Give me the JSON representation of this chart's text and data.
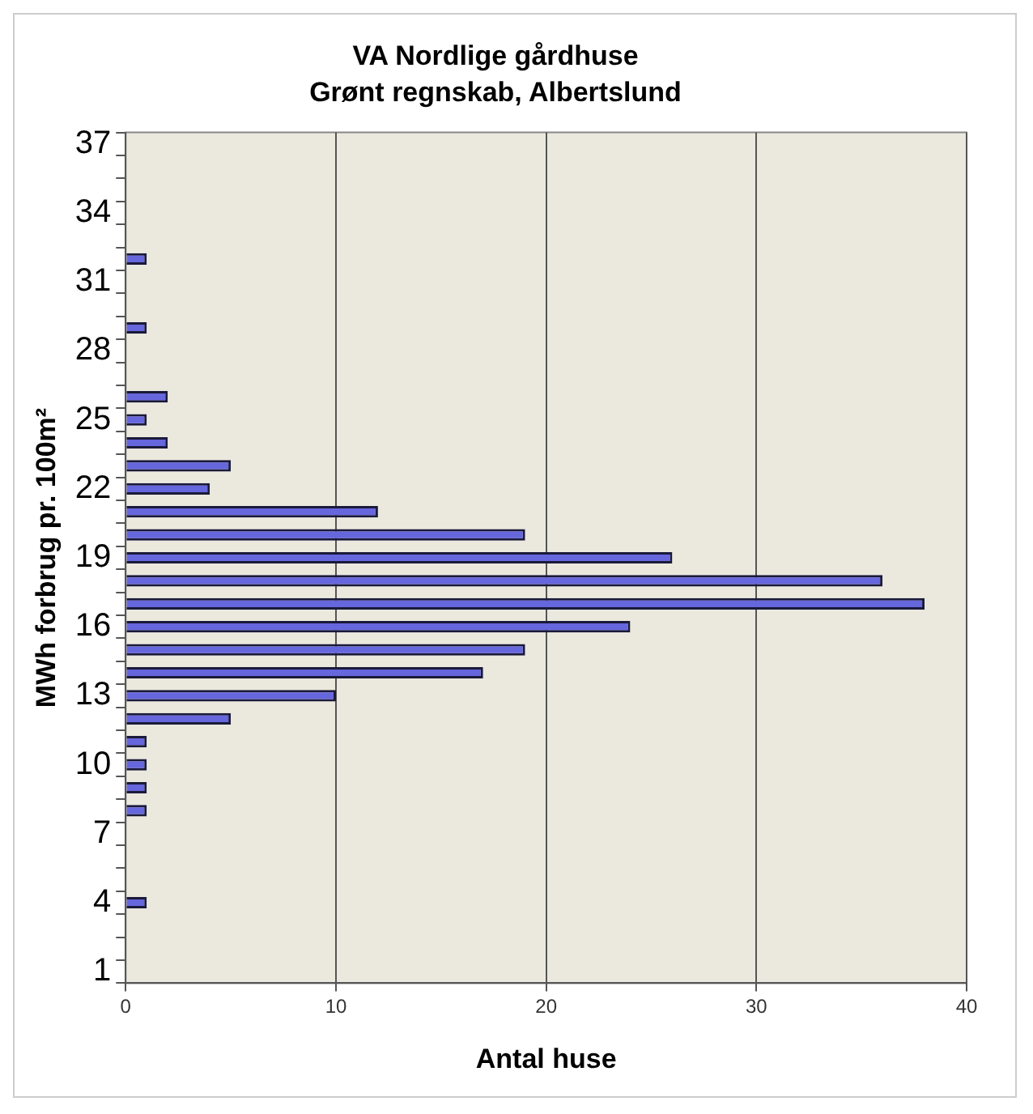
{
  "chart_data": {
    "type": "bar",
    "orientation": "horizontal",
    "title": "VA Nordlige gårdhuse",
    "subtitle": "Grønt regnskab, Albertslund",
    "xlabel": "Antal huse",
    "ylabel": "MWh forbrug pr. 100m²",
    "categories": [
      "37",
      null,
      null,
      "34",
      null,
      null,
      "31",
      null,
      null,
      "28",
      null,
      null,
      "25",
      null,
      null,
      "22",
      null,
      null,
      "19",
      null,
      null,
      "16",
      null,
      null,
      "13",
      null,
      null,
      "10",
      null,
      null,
      "7",
      null,
      null,
      "4",
      null,
      null,
      "1"
    ],
    "values": [
      0,
      0,
      0,
      0,
      0,
      1,
      0,
      0,
      1,
      0,
      0,
      2,
      1,
      2,
      5,
      4,
      12,
      19,
      26,
      36,
      38,
      24,
      19,
      17,
      10,
      5,
      1,
      1,
      1,
      1,
      0,
      0,
      0,
      1,
      0,
      0,
      0
    ],
    "color": "#6666dd",
    "xlim": [
      0,
      40
    ],
    "xticks": [
      0,
      10,
      20,
      30,
      40
    ],
    "grid": "x",
    "legend": false
  }
}
